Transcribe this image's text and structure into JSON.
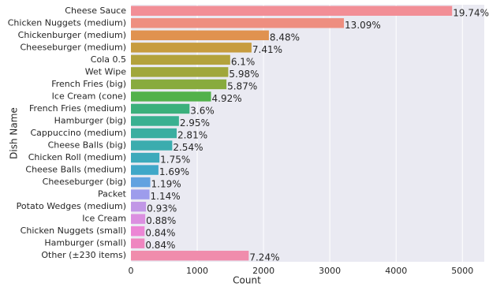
{
  "chart_data": {
    "type": "barh",
    "xlabel": "Count",
    "ylabel": "Dish Name",
    "categories": [
      "Cheese Sauce",
      "Chicken Nuggets (medium)",
      "Chickenburger (medium)",
      "Cheeseburger (medium)",
      "Cola 0.5",
      "Wet Wipe",
      "French Fries (big)",
      "Ice Cream (cone)",
      "French Fries (medium)",
      "Hamburger (big)",
      "Cappuccino (medium)",
      "Cheese Balls (big)",
      "Chicken Roll (medium)",
      "Cheese Balls (medium)",
      "Cheeseburger (big)",
      "Packet",
      "Potato Wedges (medium)",
      "Ice Cream",
      "Chicken Nuggets (small)",
      "Hamburger (small)",
      "Other (±230 items)"
    ],
    "values": [
      4845,
      3213,
      2081,
      1819,
      1497,
      1468,
      1441,
      1208,
      884,
      724,
      690,
      623,
      430,
      415,
      292,
      280,
      228,
      216,
      206,
      206,
      1777
    ],
    "value_labels": [
      "19.74%",
      "13.09%",
      "8.48%",
      "7.41%",
      "6.1%",
      "5.98%",
      "5.87%",
      "4.92%",
      "3.6%",
      "2.95%",
      "2.81%",
      "2.54%",
      "1.75%",
      "1.69%",
      "1.19%",
      "1.14%",
      "0.93%",
      "0.88%",
      "0.84%",
      "0.84%",
      "7.24%"
    ],
    "colors": [
      "#f28e96",
      "#ee8e80",
      "#e0924f",
      "#c79c3f",
      "#b3a23c",
      "#a0a73b",
      "#88ab3d",
      "#52b14b",
      "#3bb07c",
      "#39b091",
      "#3aaea0",
      "#3bacae",
      "#3daabb",
      "#3fa7c8",
      "#62a2e0",
      "#9d9cec",
      "#c197e6",
      "#db8fe0",
      "#ec86d5",
      "#ef86c0",
      "#f08cac"
    ],
    "xlim": [
      0,
      5330
    ],
    "xticks": [
      0,
      1000,
      2000,
      3000,
      4000,
      5000
    ],
    "grid": true
  }
}
